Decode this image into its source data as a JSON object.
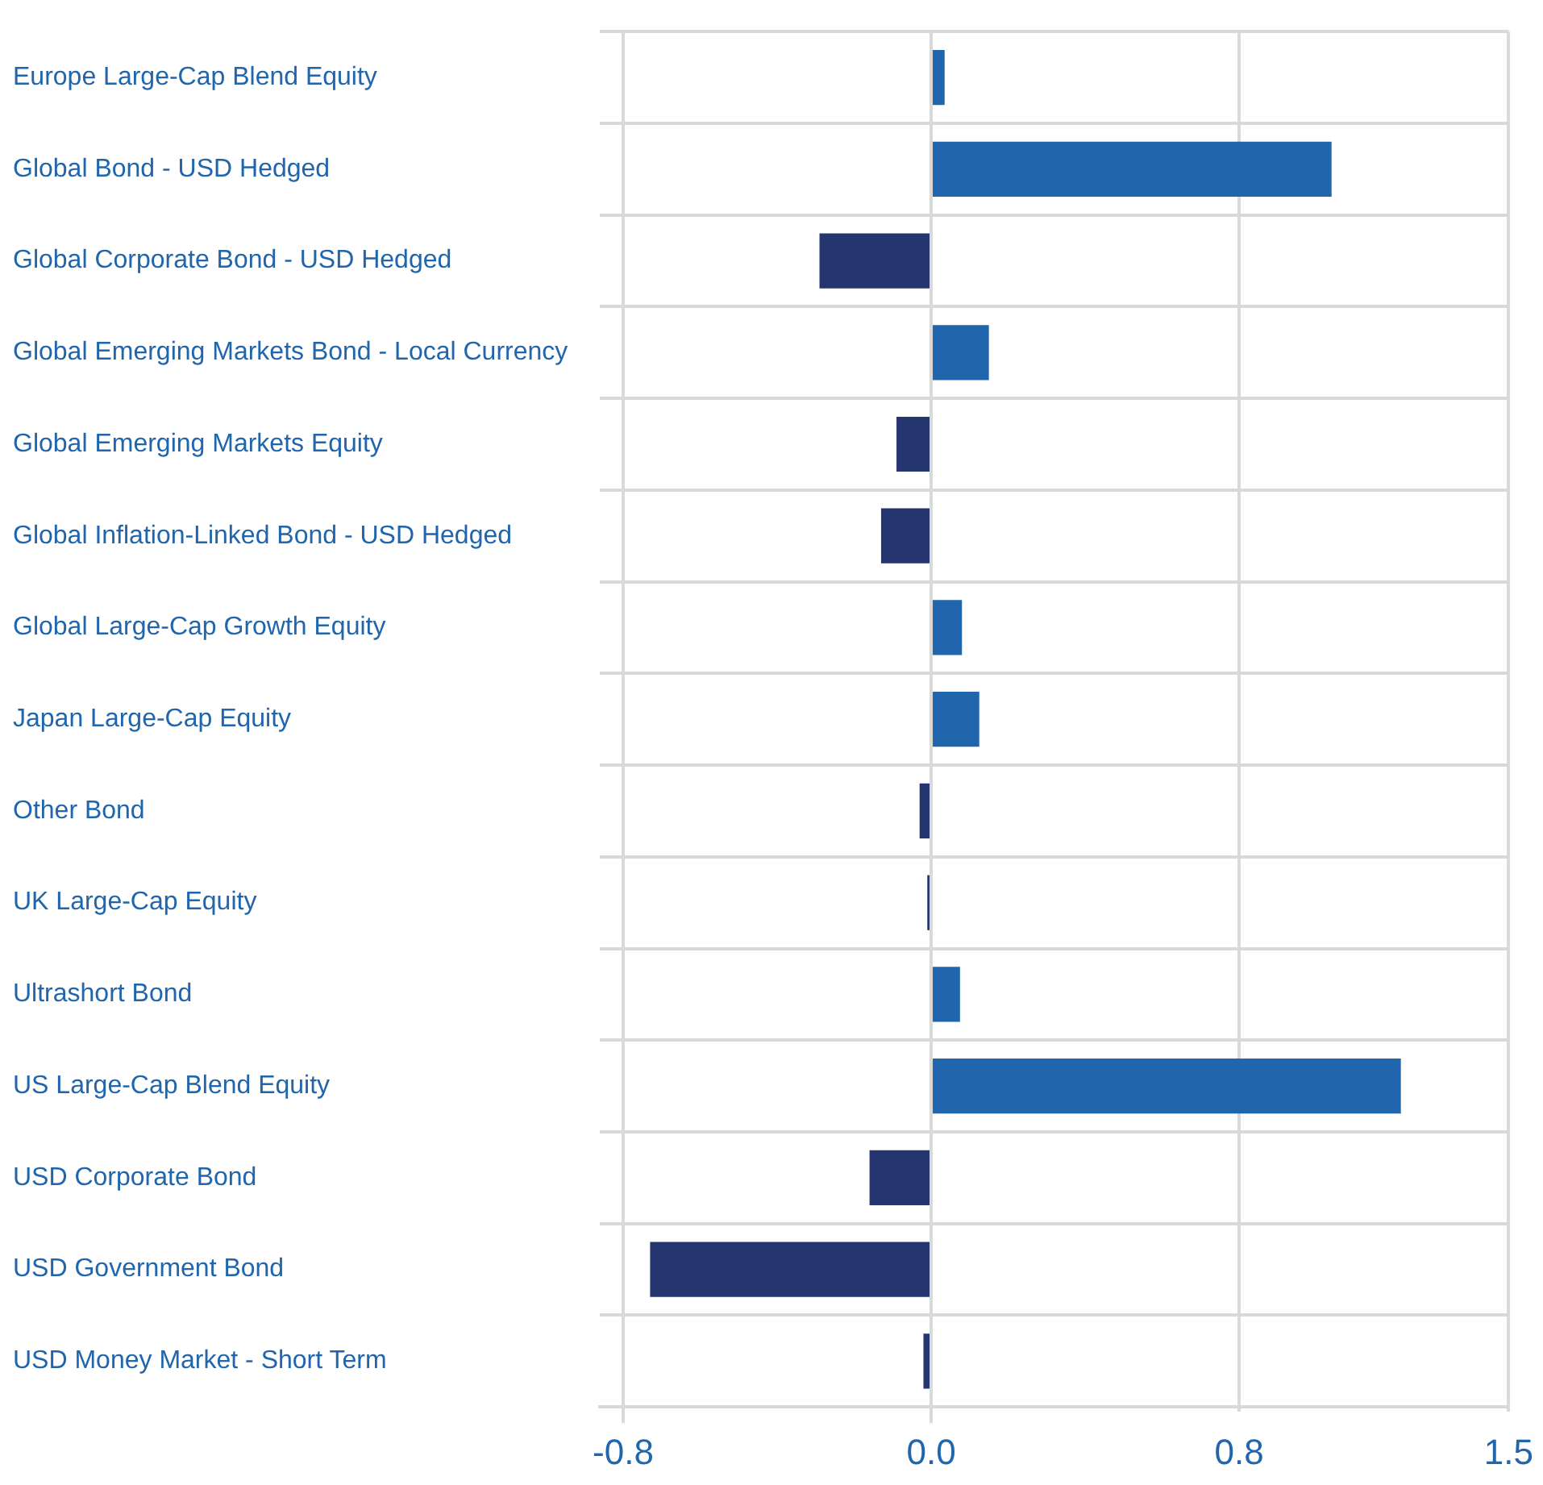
{
  "chart_data": {
    "type": "bar",
    "orientation": "horizontal",
    "categories": [
      "Europe Large-Cap Blend Equity",
      "Global Bond - USD Hedged",
      "Global Corporate Bond - USD Hedged",
      "Global Emerging Markets Bond - Local Currency",
      "Global Emerging Markets Equity",
      "Global Inflation-Linked Bond - USD Hedged",
      "Global Large-Cap Growth Equity",
      "Japan Large-Cap Equity",
      "Other Bond",
      "UK Large-Cap Equity",
      "Ultrashort Bond",
      "US Large-Cap Blend Equity",
      "USD Corporate Bond",
      "USD Government Bond",
      "USD Money Market - Short Term"
    ],
    "values": [
      0.035,
      1.04,
      -0.29,
      0.15,
      -0.09,
      -0.13,
      0.08,
      0.125,
      -0.03,
      -0.01,
      0.075,
      1.22,
      -0.16,
      -0.73,
      -0.02
    ],
    "colors": [
      "#2166ac",
      "#2166ac",
      "#243570",
      "#2166ac",
      "#243570",
      "#243570",
      "#2166ac",
      "#2166ac",
      "#243570",
      "#243570",
      "#2166ac",
      "#2166ac",
      "#243570",
      "#243570",
      "#243570"
    ],
    "xlim": [
      -0.86,
      1.5
    ],
    "xticks": [
      {
        "value": -0.8,
        "label": "-0.8"
      },
      {
        "value": 0,
        "label": "0.0"
      },
      {
        "value": 0.8,
        "label": "0.8"
      },
      {
        "value": 1.5,
        "label": "1.5"
      }
    ],
    "grid": true,
    "legend": false
  }
}
